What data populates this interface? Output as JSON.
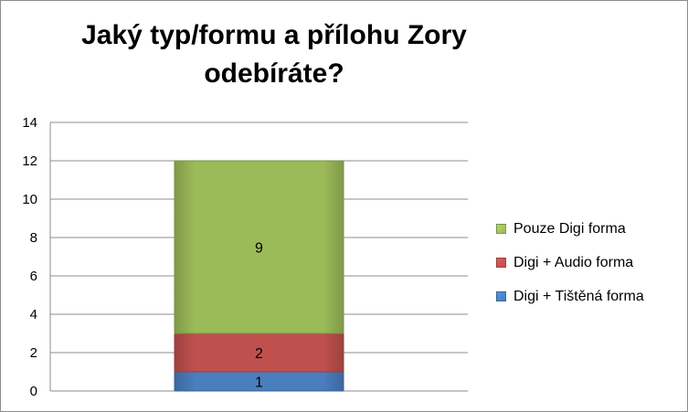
{
  "chart_data": {
    "type": "bar",
    "stacked": true,
    "title_lines": [
      "Jaký typ/formu a přílohu Zory",
      "odebíráte?"
    ],
    "categories": [
      ""
    ],
    "series": [
      {
        "name": "Digi + Tištěná forma",
        "values": [
          1
        ],
        "color": "#4a7ebf"
      },
      {
        "name": "Digi + Audio forma",
        "values": [
          2
        ],
        "color": "#c0504d"
      },
      {
        "name": "Pouze Digi forma",
        "values": [
          9
        ],
        "color": "#9bbb59"
      }
    ],
    "legend_order": [
      "Pouze Digi forma",
      "Digi + Audio forma",
      "Digi + Tištěná forma"
    ],
    "legend_position": "right",
    "ylim": [
      0,
      14
    ],
    "yticks": [
      "0",
      "2",
      "4",
      "6",
      "8",
      "10",
      "12",
      "14"
    ],
    "grid": true
  }
}
